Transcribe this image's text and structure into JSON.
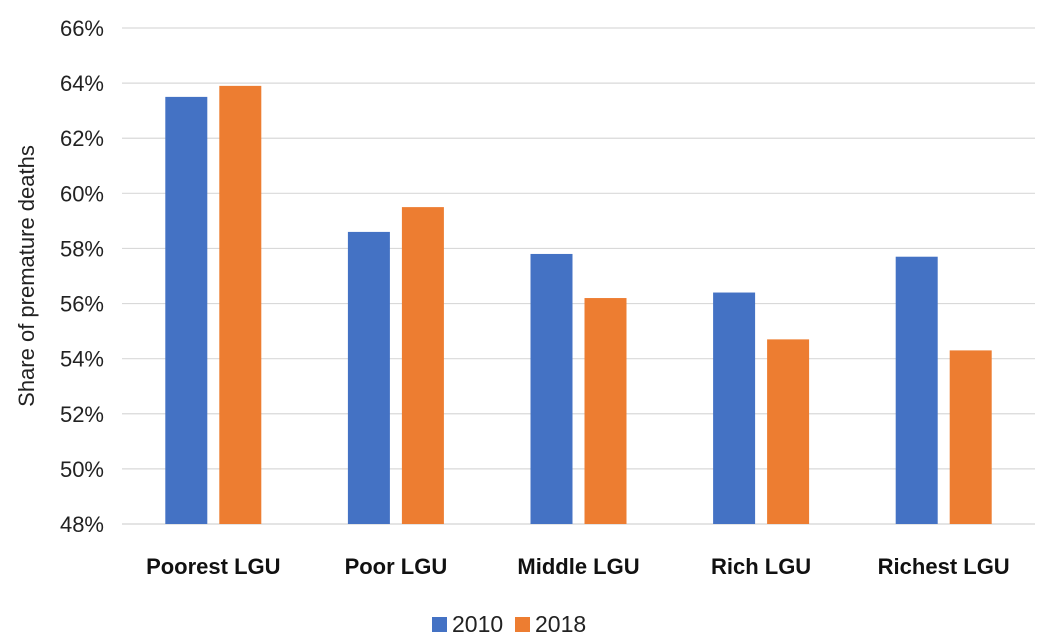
{
  "chart_data": {
    "type": "bar",
    "title": "",
    "xlabel": "",
    "ylabel": "Share of premature deaths",
    "ylim": [
      0.48,
      0.66
    ],
    "ytick_values": [
      0.48,
      0.5,
      0.52,
      0.54,
      0.56,
      0.58,
      0.6,
      0.62,
      0.64,
      0.66
    ],
    "ytick_labels": [
      "48%",
      "50%",
      "52%",
      "54%",
      "56%",
      "58%",
      "60%",
      "62%",
      "64%",
      "66%"
    ],
    "grid": true,
    "legend_position": "bottom-center",
    "categories": [
      "Poorest LGU",
      "Poor LGU",
      "Middle LGU",
      "Rich LGU",
      "Richest LGU"
    ],
    "series": [
      {
        "name": "2010",
        "color": "#4472C4",
        "values": [
          0.635,
          0.586,
          0.578,
          0.564,
          0.577
        ]
      },
      {
        "name": "2018",
        "color": "#ED7D31",
        "values": [
          0.639,
          0.595,
          0.562,
          0.547,
          0.543
        ]
      }
    ]
  }
}
